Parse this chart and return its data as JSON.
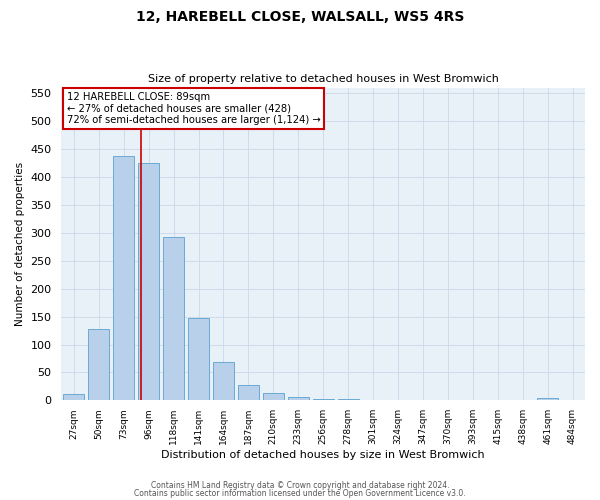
{
  "title1": "12, HAREBELL CLOSE, WALSALL, WS5 4RS",
  "title2": "Size of property relative to detached houses in West Bromwich",
  "xlabel": "Distribution of detached houses by size in West Bromwich",
  "ylabel": "Number of detached properties",
  "bar_labels": [
    "27sqm",
    "50sqm",
    "73sqm",
    "96sqm",
    "118sqm",
    "141sqm",
    "164sqm",
    "187sqm",
    "210sqm",
    "233sqm",
    "256sqm",
    "278sqm",
    "301sqm",
    "324sqm",
    "347sqm",
    "370sqm",
    "393sqm",
    "415sqm",
    "438sqm",
    "461sqm",
    "484sqm"
  ],
  "bar_values": [
    12,
    127,
    437,
    425,
    292,
    147,
    68,
    27,
    13,
    7,
    3,
    2,
    1,
    1,
    0,
    0,
    0,
    0,
    0,
    5,
    0
  ],
  "bar_color": "#b8d0ea",
  "bar_edge_color": "#6aaad4",
  "vline_color": "#cc0000",
  "annotation_text": "12 HAREBELL CLOSE: 89sqm\n← 27% of detached houses are smaller (428)\n72% of semi-detached houses are larger (1,124) →",
  "annotation_box_color": "#ffffff",
  "annotation_box_edge": "#cc0000",
  "ylim": [
    0,
    560
  ],
  "yticks": [
    0,
    50,
    100,
    150,
    200,
    250,
    300,
    350,
    400,
    450,
    500,
    550
  ],
  "grid_color": "#c8d8e8",
  "bg_color": "#e8f0f8",
  "footer1": "Contains HM Land Registry data © Crown copyright and database right 2024.",
  "footer2": "Contains public sector information licensed under the Open Government Licence v3.0."
}
